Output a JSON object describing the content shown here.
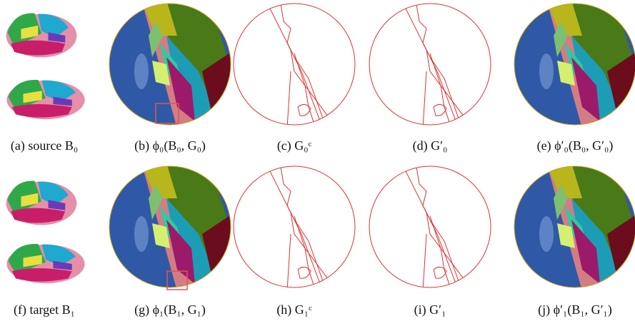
{
  "panels": [
    {
      "caption": "(a) source B₀"
    },
    {
      "caption": "(b) ϕ₀(B₀, G₀)"
    },
    {
      "caption": "(c) G₀ᶜ"
    },
    {
      "caption": "(d) G′₀"
    },
    {
      "caption": "(e) ϕ′₀(B₀, G′₀)"
    },
    {
      "caption": "(f) target B₁"
    },
    {
      "caption": "(g) ϕ₁(B₁, G₁)"
    },
    {
      "caption": "(h) G₁ᶜ"
    },
    {
      "caption": "(i) G′₁"
    },
    {
      "caption": "(j) ϕ′₁(B₁, G′₁)"
    }
  ]
}
